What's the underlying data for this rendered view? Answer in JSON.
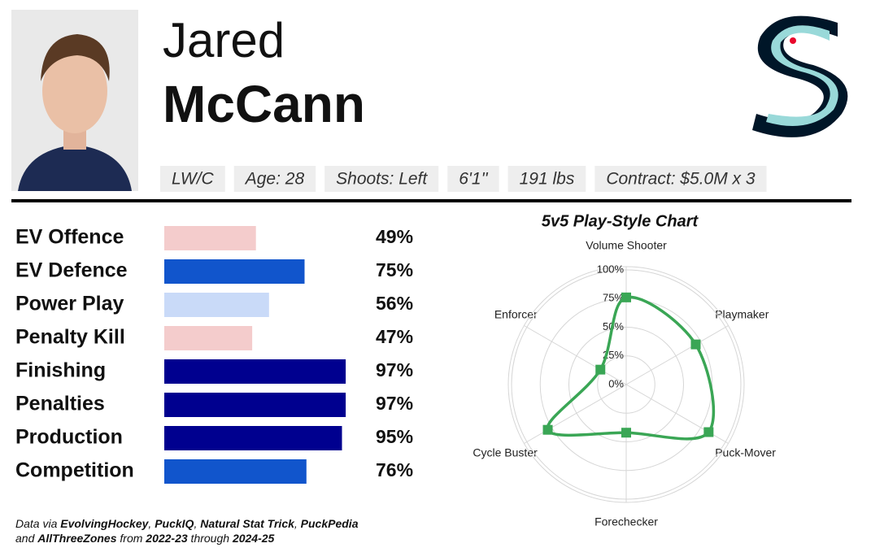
{
  "header": {
    "first_name": "Jared",
    "last_name": "McCann",
    "tags": [
      "LW/C",
      "Age: 28",
      "Shoots: Left",
      "6'1''",
      "191 lbs",
      "Contract: $5.0M x 3"
    ]
  },
  "chart_data": [
    {
      "type": "bar",
      "categories": [
        "EV Offence",
        "EV Defence",
        "Power Play",
        "Penalty Kill",
        "Finishing",
        "Penalties",
        "Production",
        "Competition"
      ],
      "values": [
        49,
        75,
        56,
        47,
        97,
        97,
        95,
        76
      ],
      "value_labels": [
        "49%",
        "75%",
        "56%",
        "47%",
        "97%",
        "97%",
        "95%",
        "76%"
      ],
      "colors": [
        "#f4cccc",
        "#1155cc",
        "#c9daf8",
        "#f4cccc",
        "#00008f",
        "#00008f",
        "#00008f",
        "#1155cc"
      ]
    },
    {
      "type": "radar",
      "title": "5v5 Play-Style Chart",
      "categories": [
        "Volume Shooter",
        "Playmaker",
        "Puck-Mover",
        "Forechecker",
        "Cycle Buster",
        "Enforcer"
      ],
      "series": [
        {
          "color": "#3aa655",
          "values": [
            76,
            70,
            83,
            42,
            79,
            26
          ]
        }
      ],
      "ylim": [
        0,
        100
      ],
      "yticks": [
        {
          "value": 0,
          "label": "0%"
        },
        {
          "value": 25,
          "label": "25%"
        },
        {
          "value": 50,
          "label": "50%"
        },
        {
          "value": 75,
          "label": "75%"
        },
        {
          "value": 100,
          "label": "100%"
        }
      ],
      "grid": true
    }
  ],
  "footer": {
    "lines": [
      [
        {
          "text": "Data via ",
          "bold": false
        },
        {
          "text": "EvolvingHockey",
          "bold": true
        },
        {
          "text": ", ",
          "bold": false
        },
        {
          "text": "PuckIQ",
          "bold": true
        },
        {
          "text": ", ",
          "bold": false
        },
        {
          "text": "Natural Stat Trick",
          "bold": true
        },
        {
          "text": ", ",
          "bold": false
        },
        {
          "text": "PuckPedia",
          "bold": true
        }
      ],
      [
        {
          "text": "and ",
          "bold": false
        },
        {
          "text": "AllThreeZones",
          "bold": true
        },
        {
          "text": " from ",
          "bold": false
        },
        {
          "text": "2022-23",
          "bold": true
        },
        {
          "text": " through ",
          "bold": false
        },
        {
          "text": "2024-25",
          "bold": true
        }
      ]
    ]
  }
}
